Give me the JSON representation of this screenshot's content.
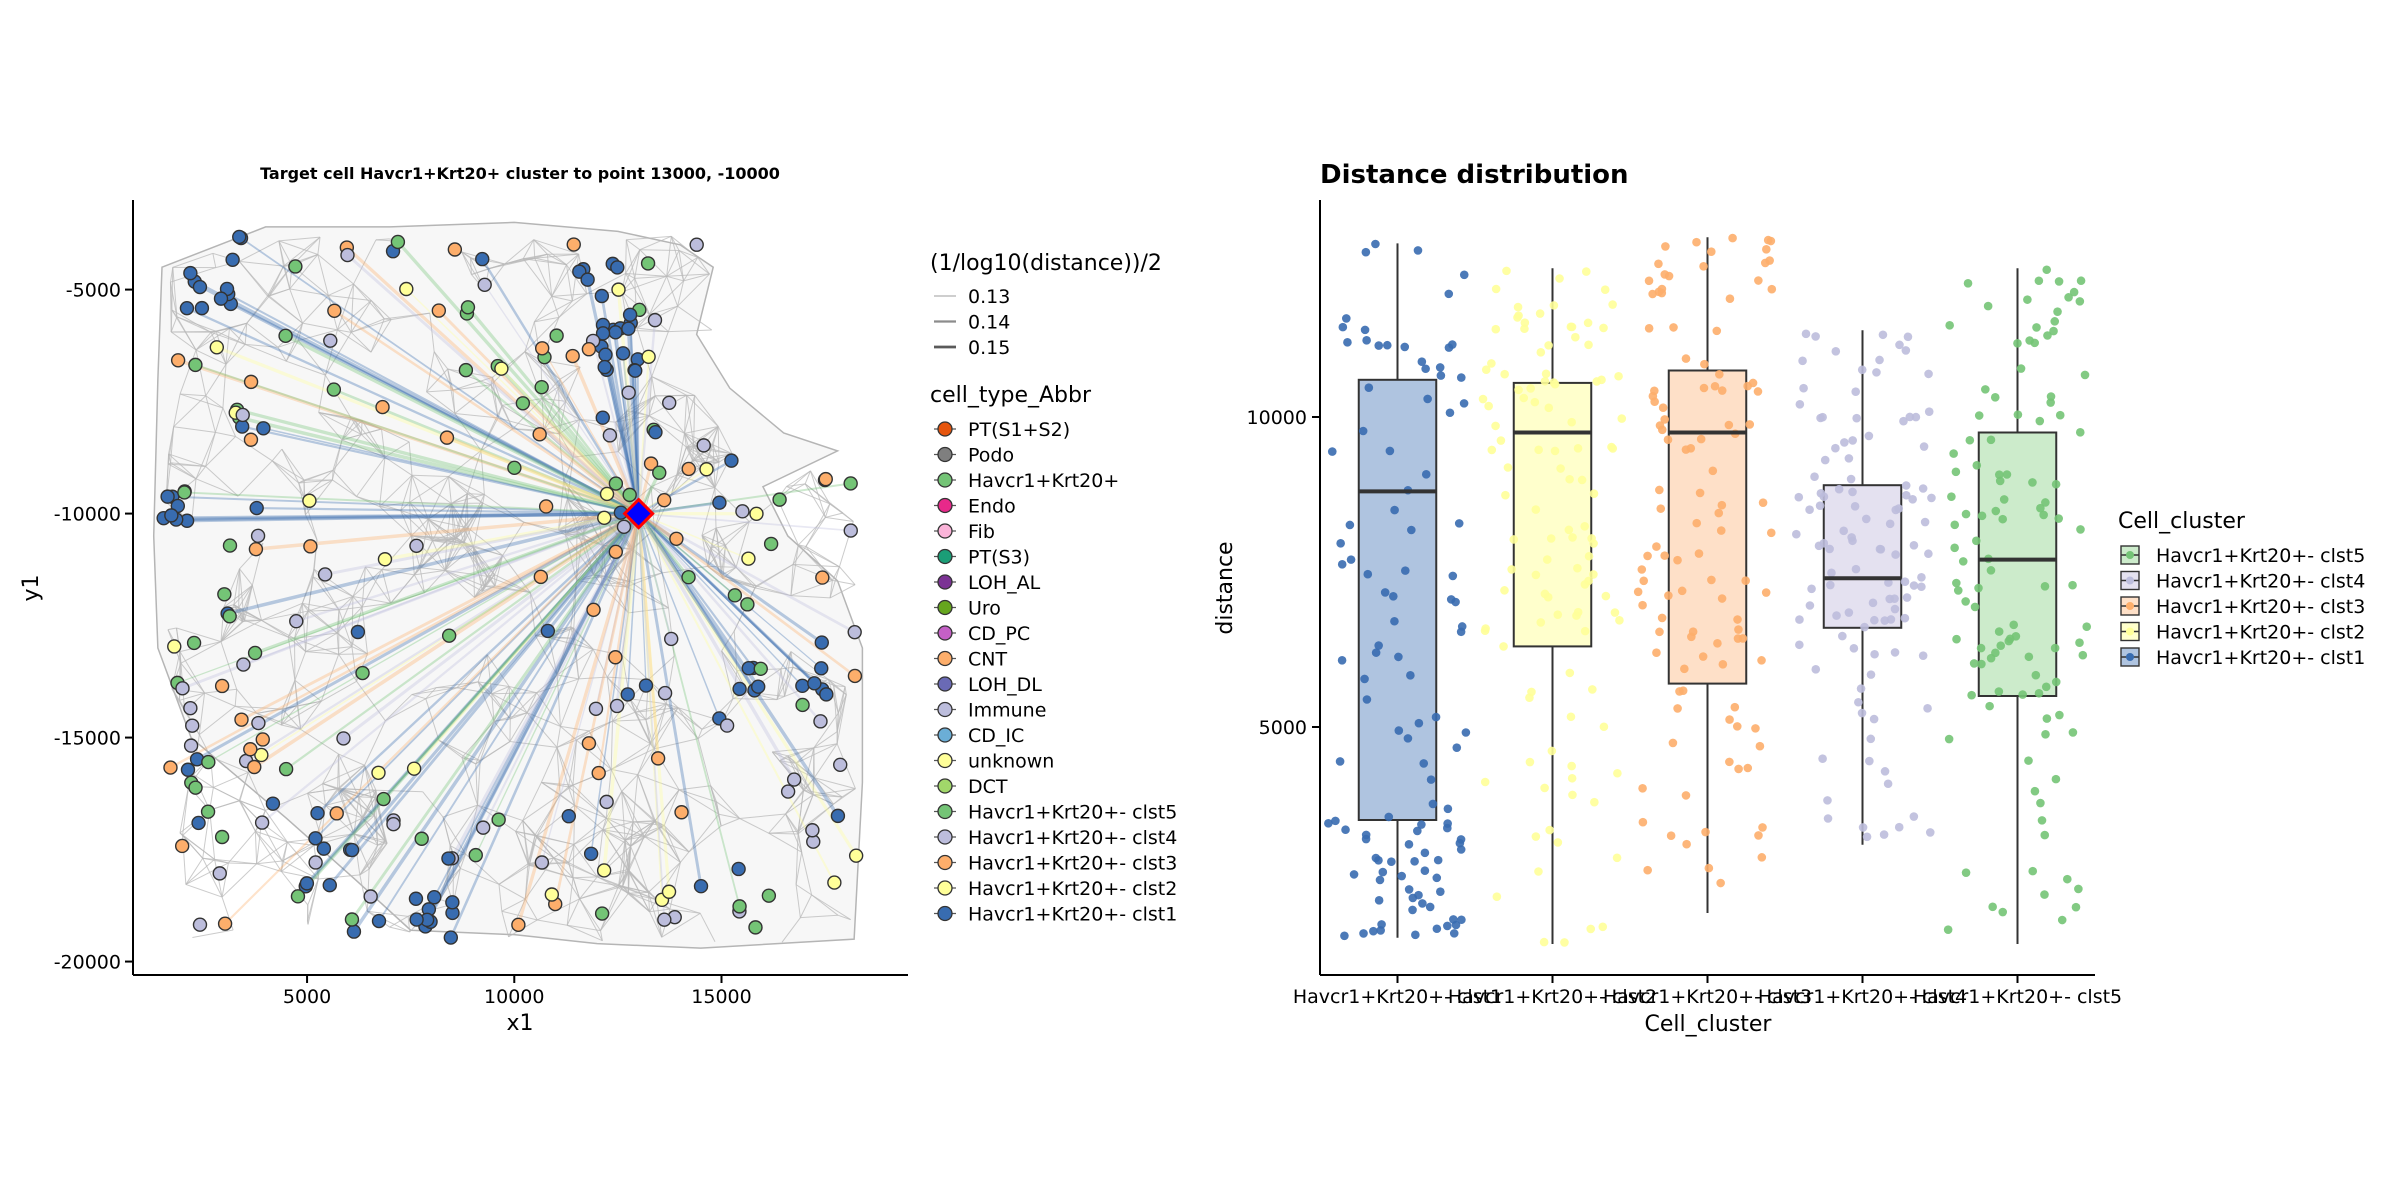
{
  "chart_data": [
    {
      "type": "scatter",
      "title": "Target cell Havcr1+Krt20+ cluster to point 13000, -10000",
      "xlabel": "x1",
      "ylabel": "y1",
      "xlim": [
        800,
        19500
      ],
      "ylim": [
        -20300,
        -3000
      ],
      "x_ticks": [
        5000,
        10000,
        15000
      ],
      "y_ticks": [
        -5000,
        -10000,
        -15000,
        -20000
      ],
      "grid": false,
      "target_point": {
        "x": 13000,
        "y": -10000
      },
      "line_legend": {
        "title": "(1/log10(distance))/2",
        "entries": [
          "0.13",
          "0.14",
          "0.15"
        ]
      },
      "cell_legend": {
        "title": "cell_type_Abbr",
        "entries": [
          {
            "label": "PT(S1+S2)",
            "color": "#E6550D"
          },
          {
            "label": "Podo",
            "color": "#7F7F7F"
          },
          {
            "label": "Havcr1+Krt20+",
            "color": "#74C476"
          },
          {
            "label": "Endo",
            "color": "#E7298A"
          },
          {
            "label": "Fib",
            "color": "#FBB4D9"
          },
          {
            "label": "PT(S3)",
            "color": "#1B9E77"
          },
          {
            "label": "LOH_AL",
            "color": "#7B3294"
          },
          {
            "label": "Uro",
            "color": "#66A61E"
          },
          {
            "label": "CD_PC",
            "color": "#C460C6"
          },
          {
            "label": "CNT",
            "color": "#FDAE6B"
          },
          {
            "label": "LOH_DL",
            "color": "#6A6AB5"
          },
          {
            "label": "Immune",
            "color": "#BCBDDC"
          },
          {
            "label": "CD_IC",
            "color": "#6BAED6"
          },
          {
            "label": "unknown",
            "color": "#FFFF99"
          },
          {
            "label": "DCT",
            "color": "#A1D76A"
          },
          {
            "label": "Havcr1+Krt20+- clst5",
            "color": "#74C476"
          },
          {
            "label": "Havcr1+Krt20+- clst4",
            "color": "#BCBDDC"
          },
          {
            "label": "Havcr1+Krt20+- clst3",
            "color": "#FDAE6B"
          },
          {
            "label": "Havcr1+Krt20+- clst2",
            "color": "#FFFF99"
          },
          {
            "label": "Havcr1+Krt20+- clst1",
            "color": "#386CB0"
          }
        ]
      }
    },
    {
      "type": "box",
      "title": "Distance distribution",
      "xlabel": "Cell_cluster",
      "ylabel": "distance",
      "ylim": [
        1000,
        13500
      ],
      "y_ticks": [
        5000,
        10000
      ],
      "grid": false,
      "categories": [
        "Havcr1+Krt20+- clst1",
        "Havcr1+Krt20+- clst2",
        "Havcr1+Krt20+- clst3",
        "Havcr1+Krt20+- clst4",
        "Havcr1+Krt20+- clst5"
      ],
      "boxes": [
        {
          "name": "Havcr1+Krt20+- clst1",
          "min": 1600,
          "q1": 3500,
          "median": 8800,
          "q3": 10600,
          "max": 12800,
          "color": "#386CB0",
          "fill": "#AFC4E0"
        },
        {
          "name": "Havcr1+Krt20+- clst2",
          "min": 1500,
          "q1": 6300,
          "median": 9750,
          "q3": 10550,
          "max": 12400,
          "color": "#FFFF99",
          "fill": "#FFFFCC"
        },
        {
          "name": "Havcr1+Krt20+- clst3",
          "min": 2000,
          "q1": 5700,
          "median": 9750,
          "q3": 10750,
          "max": 12900,
          "color": "#FDAE6B",
          "fill": "#FEE0C8"
        },
        {
          "name": "Havcr1+Krt20+- clst4",
          "min": 3100,
          "q1": 6600,
          "median": 7400,
          "q3": 8900,
          "max": 11400,
          "color": "#BCBDDC",
          "fill": "#E4E1F0"
        },
        {
          "name": "Havcr1+Krt20+- clst5",
          "min": 1500,
          "q1": 5500,
          "median": 7700,
          "q3": 9750,
          "max": 12400,
          "color": "#74C476",
          "fill": "#CCEBCB"
        }
      ],
      "legend": {
        "title": "Cell_cluster",
        "position": "right",
        "entries": [
          "Havcr1+Krt20+- clst5",
          "Havcr1+Krt20+- clst4",
          "Havcr1+Krt20+- clst3",
          "Havcr1+Krt20+- clst2",
          "Havcr1+Krt20+- clst1"
        ]
      }
    }
  ]
}
